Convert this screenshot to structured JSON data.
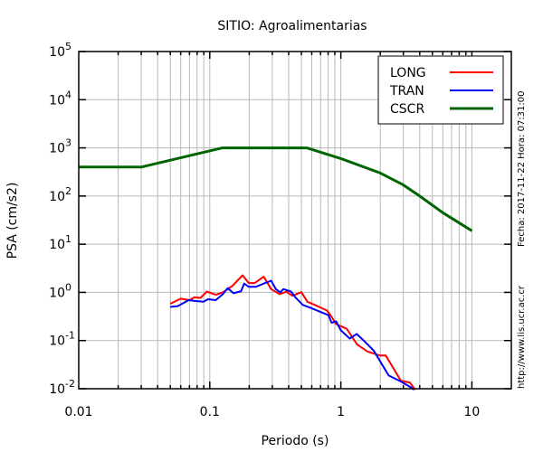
{
  "chart_data": {
    "type": "line",
    "title": "SITIO: Agroalimentarias",
    "xlabel": "Periodo (s)",
    "ylabel": "PSA (cm/s2)",
    "xscale": "log",
    "yscale": "log",
    "xlim": [
      0.01,
      20
    ],
    "ylim": [
      0.01,
      100000
    ],
    "grid": true,
    "legend_position": "top-right",
    "x_tick_labels": [
      {
        "value": 0.01,
        "text": "0.01"
      },
      {
        "value": 0.1,
        "text": "0.1"
      },
      {
        "value": 1,
        "text": "1"
      },
      {
        "value": 10,
        "text": "10"
      }
    ],
    "y_tick_labels": [
      {
        "value": 100000,
        "base": "10",
        "exp": "5"
      },
      {
        "value": 10000,
        "base": "10",
        "exp": "4"
      },
      {
        "value": 1000,
        "base": "10",
        "exp": "3"
      },
      {
        "value": 100,
        "base": "10",
        "exp": "2"
      },
      {
        "value": 10,
        "base": "10",
        "exp": "1"
      },
      {
        "value": 1,
        "base": "10",
        "exp": "0"
      },
      {
        "value": 0.1,
        "base": "10",
        "exp": "-1"
      },
      {
        "value": 0.01,
        "base": "10",
        "exp": "-2"
      }
    ],
    "series": [
      {
        "name": "LONG",
        "color": "#ff0000",
        "x": [
          0.05,
          0.06,
          0.0705,
          0.076,
          0.085,
          0.095,
          0.111,
          0.126,
          0.148,
          0.178,
          0.198,
          0.22,
          0.258,
          0.294,
          0.341,
          0.384,
          0.427,
          0.5,
          0.556,
          0.634,
          0.705,
          0.784,
          0.85,
          0.92,
          1.11,
          1.33,
          1.6,
          1.98,
          2.2,
          2.87,
          3.36,
          3.7
        ],
        "y": [
          0.58,
          0.74,
          0.69,
          0.79,
          0.77,
          1.04,
          0.89,
          1.0,
          1.35,
          2.27,
          1.56,
          1.56,
          2.11,
          1.17,
          0.92,
          1.03,
          0.85,
          1.01,
          0.64,
          0.55,
          0.48,
          0.42,
          0.31,
          0.22,
          0.175,
          0.083,
          0.059,
          0.049,
          0.049,
          0.0147,
          0.0135,
          0.0095
        ]
      },
      {
        "name": "TRAN",
        "color": "#0000ff",
        "x": [
          0.05,
          0.057,
          0.069,
          0.078,
          0.0895,
          0.097,
          0.111,
          0.126,
          0.137,
          0.152,
          0.173,
          0.183,
          0.198,
          0.226,
          0.258,
          0.294,
          0.319,
          0.345,
          0.364,
          0.416,
          0.45,
          0.513,
          0.586,
          0.687,
          0.805,
          0.85,
          0.92,
          1.0,
          1.17,
          1.32,
          1.52,
          1.78,
          2.32,
          2.87,
          3.45,
          3.6
        ],
        "y": [
          0.5,
          0.52,
          0.69,
          0.66,
          0.64,
          0.72,
          0.69,
          0.92,
          1.22,
          0.96,
          1.06,
          1.52,
          1.31,
          1.31,
          1.52,
          1.75,
          1.17,
          1.0,
          1.17,
          1.04,
          0.79,
          0.55,
          0.48,
          0.4,
          0.335,
          0.233,
          0.25,
          0.163,
          0.11,
          0.137,
          0.096,
          0.062,
          0.0188,
          0.0141,
          0.0106,
          0.0095
        ]
      },
      {
        "name": "CSCR",
        "color": "#006400",
        "x": [
          0.01,
          0.03,
          0.125,
          0.55,
          1,
          2,
          3,
          4,
          6,
          10
        ],
        "y": [
          400,
          400,
          1000,
          1000,
          600,
          300,
          170,
          100,
          45,
          19
        ]
      }
    ]
  },
  "side_text": {
    "date": "Fecha: 2017-11-22  Hora: 07:31:00",
    "url": "http://www.lis.ucr.ac.cr"
  }
}
